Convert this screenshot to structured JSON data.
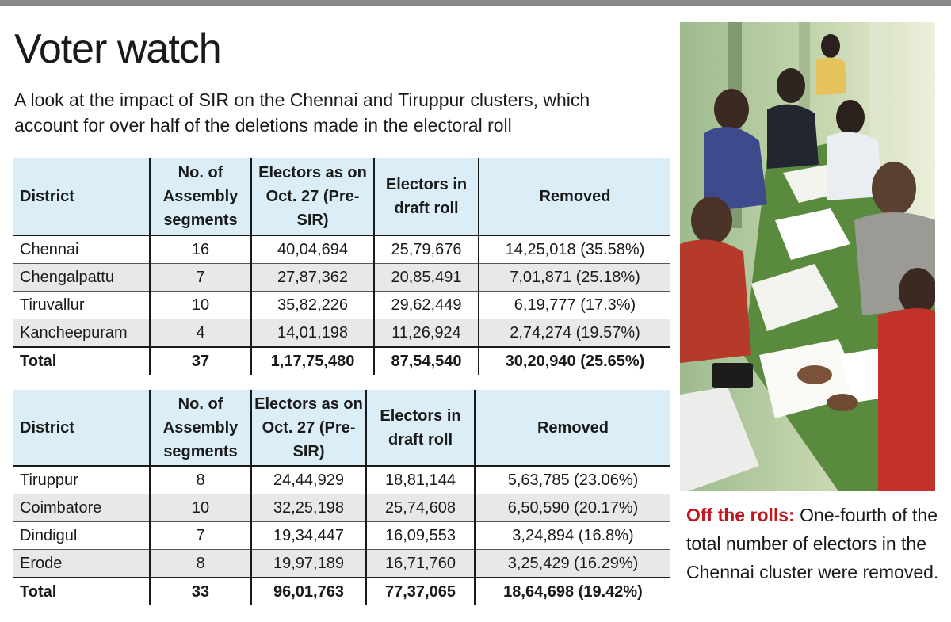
{
  "title": "Voter watch",
  "subtitle": "A look at the impact of SIR on the Chennai and Tiruppur clusters, which account for over half of the deletions made in the electoral roll",
  "table1": {
    "headers": [
      "District",
      "No. of Assembly segments",
      "Electors as on Oct. 27 (Pre-SIR)",
      "Electors in draft roll",
      "Removed"
    ],
    "rows": [
      [
        "Chennai",
        "16",
        "40,04,694",
        "25,79,676",
        "14,25,018 (35.58%)"
      ],
      [
        "Chengalpattu",
        "7",
        "27,87,362",
        "20,85,491",
        "7,01,871 (25.18%)"
      ],
      [
        "Tiruvallur",
        "10",
        "35,82,226",
        "29,62,449",
        "6,19,777 (17.3%)"
      ],
      [
        "Kancheepuram",
        "4",
        "14,01,198",
        "11,26,924",
        "2,74,274 (19.57%)"
      ]
    ],
    "total": [
      "Total",
      "37",
      "1,17,75,480",
      "87,54,540",
      "30,20,940 (25.65%)"
    ]
  },
  "table2": {
    "headers": [
      "District",
      "No. of Assembly segments",
      "Electors as on Oct. 27 (Pre-SIR)",
      "Electors in draft roll",
      "Removed"
    ],
    "rows": [
      [
        "Tiruppur",
        "8",
        "24,44,929",
        "18,81,144",
        "5,63,785 (23.06%)"
      ],
      [
        "Coimbatore",
        "10",
        "32,25,198",
        "25,74,608",
        "6,50,590 (20.17%)"
      ],
      [
        "Dindigul",
        "7",
        "19,34,447",
        "16,09,553",
        "3,24,894 (16.8%)"
      ],
      [
        "Erode",
        "8",
        "19,97,189",
        "16,71,760",
        "3,25,429 (16.29%)"
      ]
    ],
    "total": [
      "Total",
      "33",
      "96,01,763",
      "77,37,065",
      "18,64,698 (19.42%)"
    ]
  },
  "caption": {
    "lead": "Off the rolls:",
    "text": " One-fourth of the total number of electors in the Chennai cluster were removed."
  }
}
